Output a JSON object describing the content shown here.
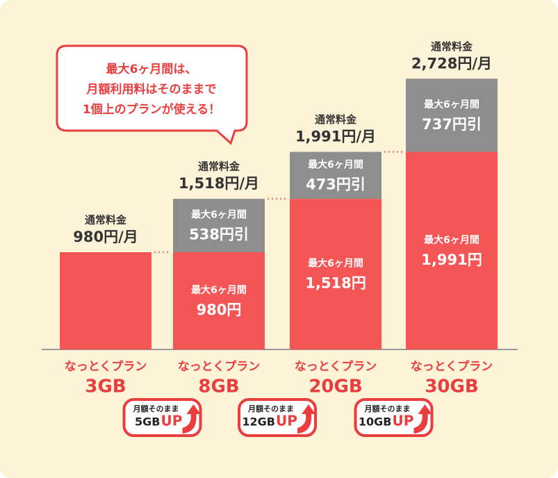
{
  "chart_data": {
    "type": "bar",
    "stacked": true,
    "callout": [
      "最大6ヶ月間は、",
      "月額利用料はそのままで",
      "1個上のプランが使える！"
    ],
    "plan_names": [
      "なっとくプラン",
      "なっとくプラン",
      "なっとくプラン",
      "なっとくプラン"
    ],
    "categories": [
      "3GB",
      "8GB",
      "20GB",
      "30GB"
    ],
    "series": [
      {
        "name": "最大6ヶ月間",
        "color": "#f45656",
        "values": [
          980,
          980,
          1518,
          1991
        ],
        "value_labels": [
          null,
          "980円",
          "1,518円",
          "1,991円"
        ]
      },
      {
        "name": "最大6ヶ月間",
        "color": "#8e8e8e",
        "values": [
          null,
          538,
          473,
          737
        ],
        "value_labels": [
          null,
          "538円引",
          "473円引",
          "737円引"
        ]
      }
    ],
    "totals": {
      "name": "通常料金",
      "values": [
        980,
        1518,
        1991,
        2728
      ],
      "value_labels": [
        "980円/月",
        "1,518円/月",
        "1,991円/月",
        "2,728円/月"
      ]
    },
    "badges": [
      {
        "label": "月額そのまま",
        "amount": "5GB",
        "up": "UP"
      },
      {
        "label": "月額そのまま",
        "amount": "12GB",
        "up": "UP"
      },
      {
        "label": "月額そのまま",
        "amount": "10GB",
        "up": "UP"
      }
    ],
    "ylim": [
      0,
      2800
    ]
  }
}
